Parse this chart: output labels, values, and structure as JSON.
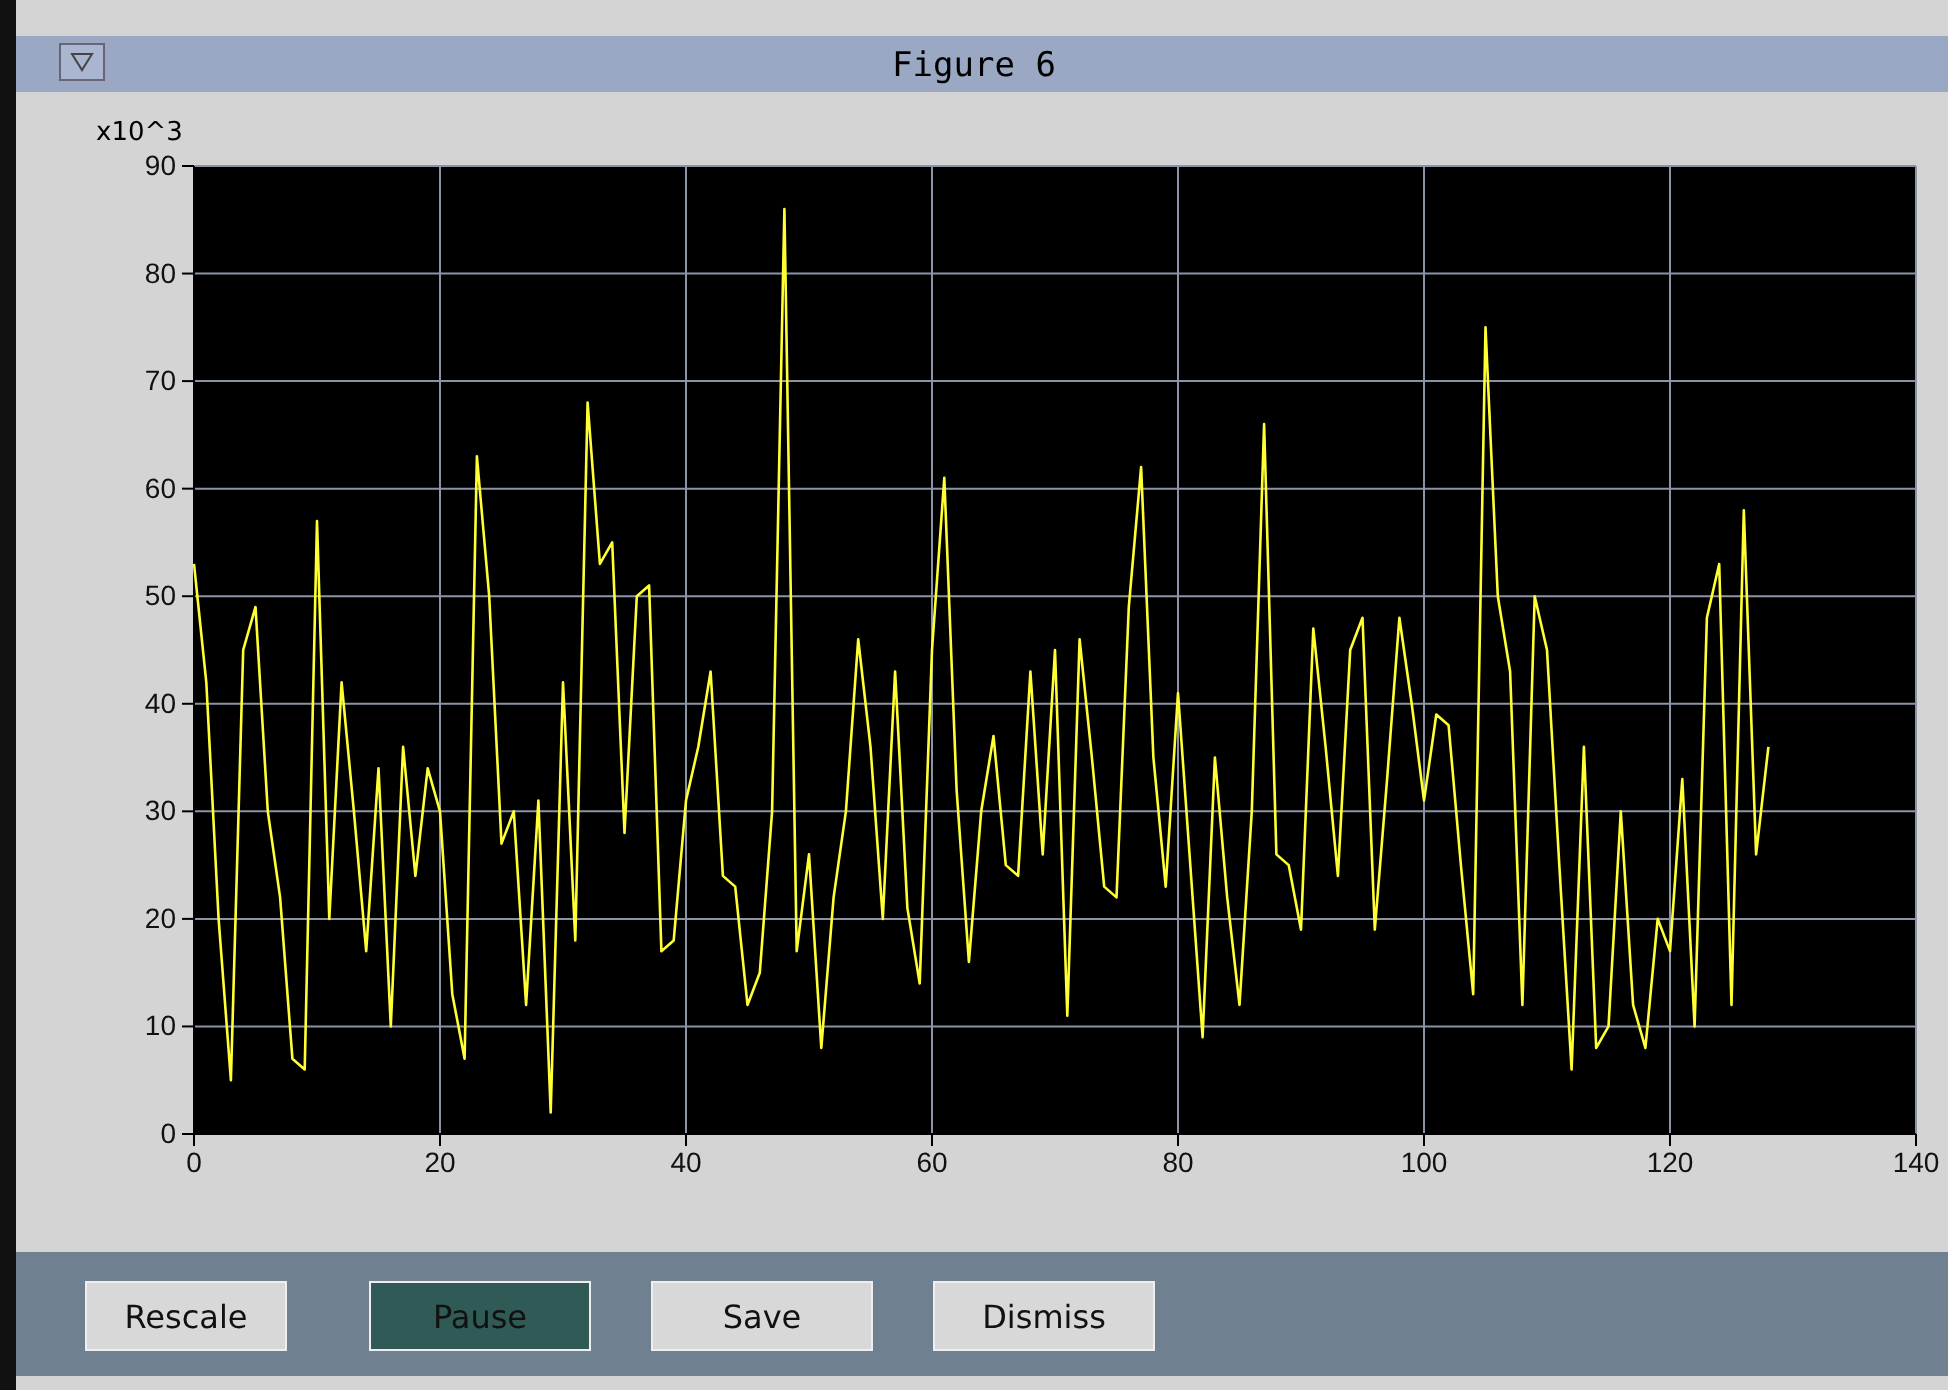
{
  "chart_data": {
    "type": "line",
    "title": "Figure 6",
    "ylabel": "x10^3",
    "x": [
      0,
      1,
      2,
      3,
      4,
      5,
      6,
      7,
      8,
      9,
      10,
      11,
      12,
      13,
      14,
      15,
      16,
      17,
      18,
      19,
      20,
      21,
      22,
      23,
      24,
      25,
      26,
      27,
      28,
      29,
      30,
      31,
      32,
      33,
      34,
      35,
      36,
      37,
      38,
      39,
      40,
      41,
      42,
      43,
      44,
      45,
      46,
      47,
      48,
      49,
      50,
      51,
      52,
      53,
      54,
      55,
      56,
      57,
      58,
      59,
      60,
      61,
      62,
      63,
      64,
      65,
      66,
      67,
      68,
      69,
      70,
      71,
      72,
      73,
      74,
      75,
      76,
      77,
      78,
      79,
      80,
      81,
      82,
      83,
      84,
      85,
      86,
      87,
      88,
      89,
      90,
      91,
      92,
      93,
      94,
      95,
      96,
      97,
      98,
      99,
      100,
      101,
      102,
      103,
      104,
      105,
      106,
      107,
      108,
      109,
      110,
      111,
      112,
      113,
      114,
      115,
      116,
      117,
      118,
      119,
      120,
      121,
      122,
      123,
      124,
      125,
      126,
      127,
      128
    ],
    "series": [
      {
        "color": "#ffff33",
        "values": [
          53,
          42,
          20,
          5,
          45,
          49,
          30,
          22,
          7,
          6,
          57,
          20,
          42,
          30,
          17,
          34,
          10,
          36,
          24,
          34,
          30,
          13,
          7,
          63,
          50,
          27,
          30,
          12,
          31,
          2,
          42,
          18,
          68,
          53,
          55,
          28,
          50,
          51,
          17,
          18,
          31,
          36,
          43,
          24,
          23,
          12,
          15,
          30,
          86,
          17,
          26,
          8,
          22,
          30,
          46,
          36,
          20,
          43,
          21,
          14,
          45,
          61,
          32,
          16,
          30,
          37,
          25,
          24,
          43,
          26,
          45,
          11,
          46,
          35,
          23,
          22,
          49,
          62,
          35,
          23,
          41,
          25,
          9,
          35,
          22,
          12,
          30,
          66,
          26,
          25,
          19,
          47,
          36,
          24,
          45,
          48,
          19,
          33,
          48,
          40,
          31,
          39,
          38,
          25,
          13,
          75,
          50,
          43,
          12,
          50,
          45,
          25,
          6,
          36,
          8,
          10,
          30,
          12,
          8,
          20,
          17,
          33,
          10,
          48,
          53,
          12,
          58,
          26,
          36
        ]
      }
    ],
    "xlim": [
      0,
      140
    ],
    "xticks": [
      0,
      20,
      40,
      60,
      80,
      100,
      120,
      140
    ],
    "ylim": [
      0,
      90
    ],
    "yticks": [
      0,
      10,
      20,
      30,
      40,
      50,
      60,
      70,
      80,
      90
    ],
    "grid": true,
    "line_style": "solid",
    "marker": "none",
    "annotations": [
      "Rescale",
      "Pause",
      "Save",
      "Dismiss"
    ]
  }
}
